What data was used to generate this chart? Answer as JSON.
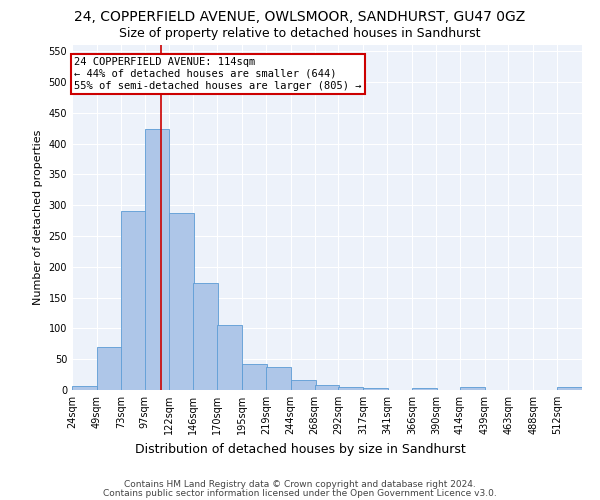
{
  "title1": "24, COPPERFIELD AVENUE, OWLSMOOR, SANDHURST, GU47 0GZ",
  "title2": "Size of property relative to detached houses in Sandhurst",
  "xlabel": "Distribution of detached houses by size in Sandhurst",
  "ylabel": "Number of detached properties",
  "bar_values": [
    7,
    70,
    290,
    424,
    288,
    174,
    105,
    43,
    37,
    16,
    8,
    5,
    3,
    0,
    3,
    0,
    5,
    0,
    0,
    0,
    5
  ],
  "bin_edges": [
    24,
    49,
    73,
    97,
    122,
    146,
    170,
    195,
    219,
    244,
    268,
    292,
    317,
    341,
    366,
    390,
    414,
    439,
    463,
    488,
    512,
    537
  ],
  "bin_width": 25,
  "bar_color": "#aec6e8",
  "bar_edge_color": "#5b9bd5",
  "property_line_x": 114,
  "annotation_line1": "24 COPPERFIELD AVENUE: 114sqm",
  "annotation_line2": "← 44% of detached houses are smaller (644)",
  "annotation_line3": "55% of semi-detached houses are larger (805) →",
  "annotation_box_color": "#ffffff",
  "annotation_box_edge_color": "#cc0000",
  "vline_color": "#cc0000",
  "ylim": [
    0,
    560
  ],
  "yticks": [
    0,
    50,
    100,
    150,
    200,
    250,
    300,
    350,
    400,
    450,
    500,
    550
  ],
  "xtick_labels": [
    "24sqm",
    "49sqm",
    "73sqm",
    "97sqm",
    "122sqm",
    "146sqm",
    "170sqm",
    "195sqm",
    "219sqm",
    "244sqm",
    "268sqm",
    "292sqm",
    "317sqm",
    "341sqm",
    "366sqm",
    "390sqm",
    "414sqm",
    "439sqm",
    "463sqm",
    "488sqm",
    "512sqm"
  ],
  "footer1": "Contains HM Land Registry data © Crown copyright and database right 2024.",
  "footer2": "Contains public sector information licensed under the Open Government Licence v3.0.",
  "bg_color": "#edf2fa",
  "title1_fontsize": 10,
  "title2_fontsize": 9,
  "tick_fontsize": 7,
  "ylabel_fontsize": 8,
  "xlabel_fontsize": 9,
  "annotation_fontsize": 7.5,
  "footer_fontsize": 6.5,
  "grid_color": "#ffffff",
  "fig_width": 6.0,
  "fig_height": 5.0,
  "dpi": 100
}
